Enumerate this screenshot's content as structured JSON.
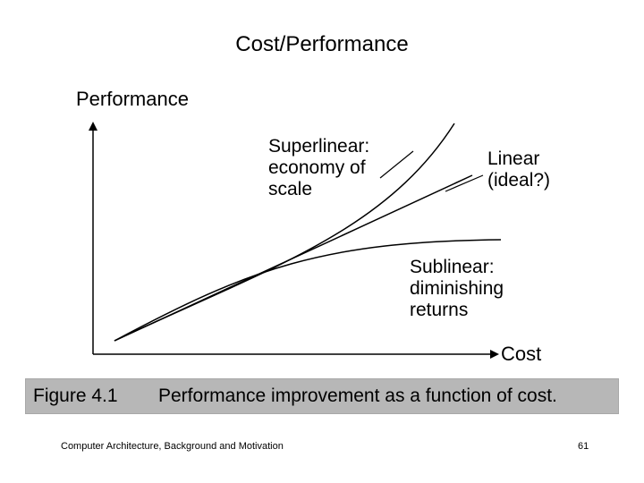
{
  "title": "Cost/Performance",
  "y_axis_label": "Performance",
  "x_axis_label": "Cost",
  "curves": [
    {
      "id": "superlinear",
      "label": "Superlinear:\neconomy of\nscale"
    },
    {
      "id": "linear",
      "label": "Linear\n(ideal?)"
    },
    {
      "id": "sublinear",
      "label": "Sublinear:\ndiminishing\nreturns"
    }
  ],
  "caption": {
    "number": "Figure 4.1",
    "text": "Performance improvement as a function of cost."
  },
  "footer": {
    "left": "Computer Architecture, Background and Motivation",
    "page": "61"
  }
}
